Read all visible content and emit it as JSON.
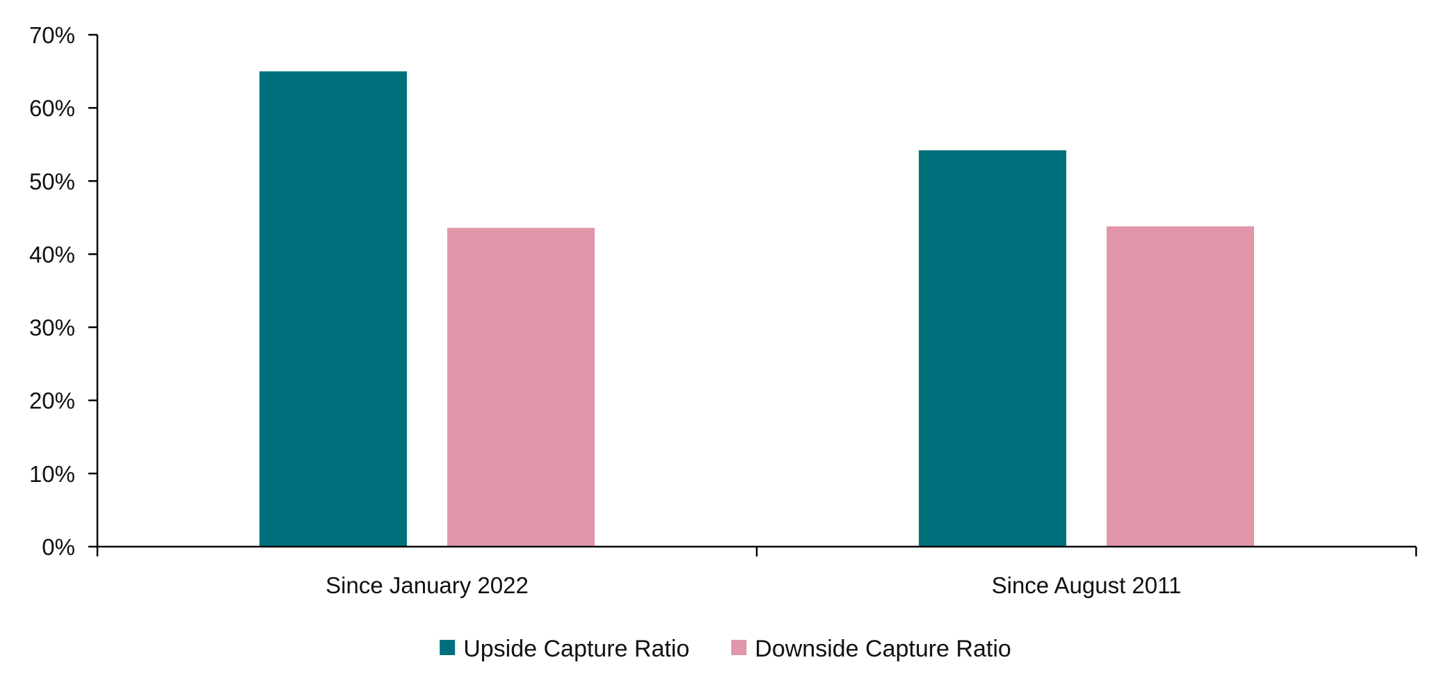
{
  "chart_data": {
    "type": "bar",
    "title": "",
    "xlabel": "",
    "ylabel": "",
    "categories": [
      "Since January 2022",
      "Since August 2011"
    ],
    "series": [
      {
        "name": "Upside Capture Ratio",
        "values": [
          65,
          54.2
        ],
        "color": "#006F7C"
      },
      {
        "name": "Downside Capture Ratio",
        "values": [
          43.6,
          43.8
        ],
        "color": "#E296A9"
      }
    ],
    "ylim": [
      0,
      70
    ],
    "y_ticks": [
      0,
      10,
      20,
      30,
      40,
      50,
      60,
      70
    ],
    "y_tick_format": "percent",
    "grid": false,
    "legend_position": "bottom"
  }
}
